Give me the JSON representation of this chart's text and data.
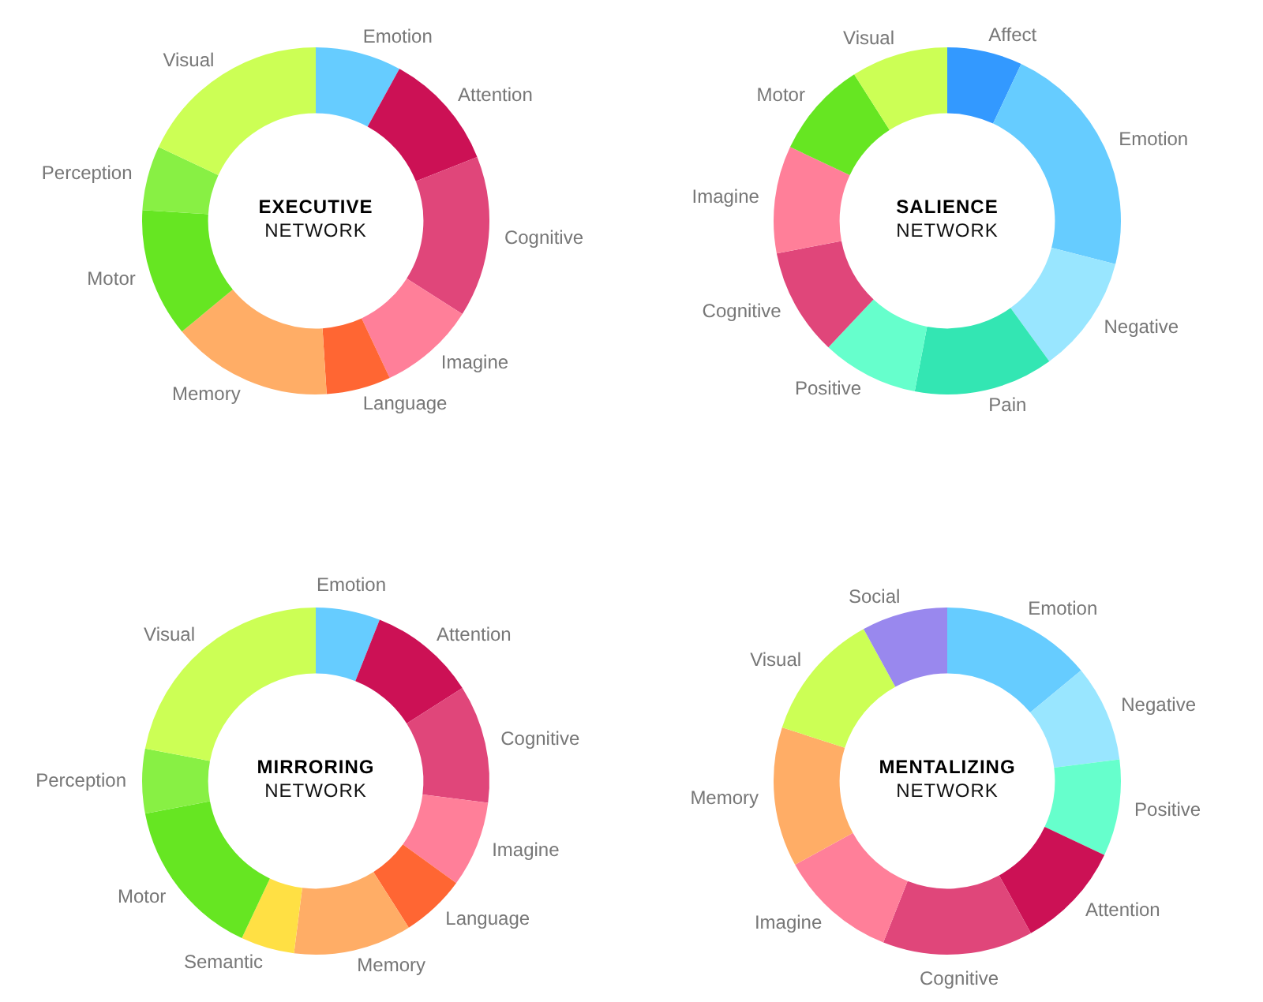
{
  "chart_data": [
    {
      "type": "donut",
      "title": "EXECUTIVE",
      "subtitle": "NETWORK",
      "legend": false,
      "categories": [
        "Emotion",
        "Attention",
        "Cognitive",
        "Imagine",
        "Language",
        "Memory",
        "Motor",
        "Perception",
        "Visual"
      ],
      "values": [
        8,
        11,
        15,
        9,
        6,
        15,
        12,
        6,
        18
      ],
      "colors": [
        "#66ccff",
        "#cc1155",
        "#e0467a",
        "#ff7f99",
        "#ff6633",
        "#ffad66",
        "#66e622",
        "#88f044",
        "#ccff55"
      ]
    },
    {
      "type": "donut",
      "title": "SALIENCE",
      "subtitle": "NETWORK",
      "legend": false,
      "categories": [
        "Affect",
        "Emotion",
        "Negative",
        "Pain",
        "Positive",
        "Cognitive",
        "Imagine",
        "Motor",
        "Visual"
      ],
      "values": [
        7,
        22,
        11,
        13,
        9,
        10,
        10,
        9,
        9
      ],
      "colors": [
        "#3399ff",
        "#66ccff",
        "#99e6ff",
        "#33e6b3",
        "#66ffcc",
        "#e0467a",
        "#ff7f99",
        "#66e622",
        "#ccff55"
      ]
    },
    {
      "type": "donut",
      "title": "MIRRORING",
      "subtitle": "NETWORK",
      "legend": false,
      "categories": [
        "Emotion",
        "Attention",
        "Cognitive",
        "Imagine",
        "Language",
        "Memory",
        "Semantic",
        "Motor",
        "Perception",
        "Visual"
      ],
      "values": [
        6,
        10,
        11,
        8,
        6,
        11,
        5,
        15,
        6,
        22
      ],
      "colors": [
        "#66ccff",
        "#cc1155",
        "#e0467a",
        "#ff7f99",
        "#ff6633",
        "#ffad66",
        "#ffe044",
        "#66e622",
        "#88f044",
        "#ccff55"
      ]
    },
    {
      "type": "donut",
      "title": "MENTALIZING",
      "subtitle": "NETWORK",
      "legend": false,
      "categories": [
        "Emotion",
        "Negative",
        "Positive",
        "Attention",
        "Cognitive",
        "Imagine",
        "Memory",
        "Visual",
        "Social"
      ],
      "values": [
        14,
        9,
        9,
        10,
        14,
        11,
        13,
        12,
        8
      ],
      "colors": [
        "#66ccff",
        "#99e6ff",
        "#66ffcc",
        "#cc1155",
        "#e0467a",
        "#ff7f99",
        "#ffad66",
        "#ccff55",
        "#9988ee"
      ]
    }
  ]
}
